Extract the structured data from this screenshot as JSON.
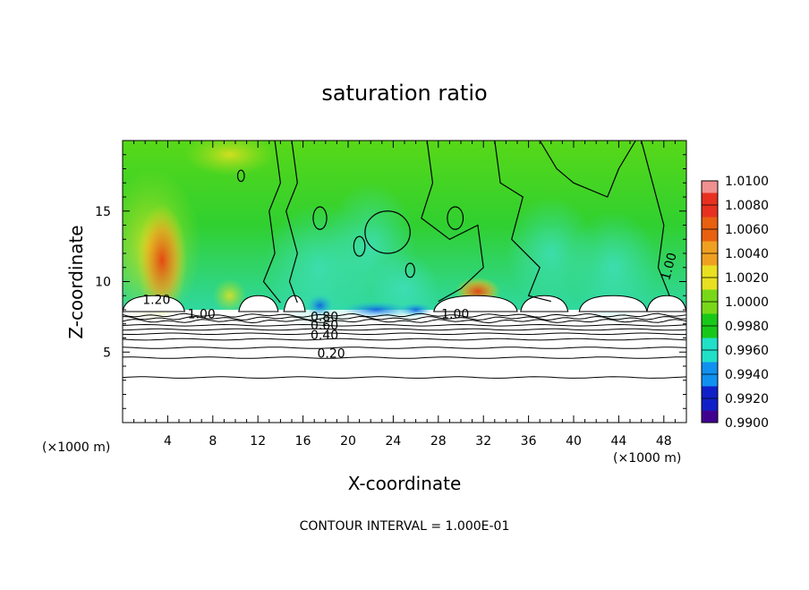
{
  "chart_data": {
    "type": "heatmap",
    "title": "saturation ratio",
    "xlabel": "X-coordinate",
    "ylabel": "Z-coordinate",
    "x_unit": "(×1000 m)",
    "xlim": [
      0,
      50
    ],
    "ylim": [
      0,
      20
    ],
    "x_ticks": [
      4,
      8,
      12,
      16,
      20,
      24,
      28,
      32,
      36,
      40,
      44,
      48
    ],
    "y_ticks": [
      5,
      10,
      15
    ],
    "colorbar": {
      "ticks": [
        "1.0100",
        "1.0080",
        "1.0060",
        "1.0040",
        "1.0020",
        "1.0000",
        "0.9980",
        "0.9960",
        "0.9940",
        "0.9920",
        "0.9900"
      ],
      "colors": [
        "#f09090",
        "#e83020",
        "#e86010",
        "#f0a020",
        "#e8e020",
        "#78d818",
        "#18c818",
        "#20e0c8",
        "#1090f0",
        "#1020c8",
        "#400090"
      ],
      "min": 0.99,
      "max": 1.01
    },
    "contour_levels": [
      0.1,
      0.2,
      0.3,
      0.4,
      0.5,
      0.6,
      0.7,
      0.8,
      0.9,
      1.0,
      1.1,
      1.2
    ],
    "contour_labels": [
      {
        "text": "0.20",
        "x": 18.5,
        "z": 4.6
      },
      {
        "text": "0.40",
        "x": 17.9,
        "z": 5.9
      },
      {
        "text": "0.60",
        "x": 17.9,
        "z": 6.6
      },
      {
        "text": "0.80",
        "x": 17.9,
        "z": 7.2
      },
      {
        "text": "1.00",
        "x": 7.0,
        "z": 7.4
      },
      {
        "text": "1.20",
        "x": 3.0,
        "z": 8.4
      },
      {
        "text": "1.00",
        "x": 29.5,
        "z": 7.4
      },
      {
        "text": "1.00",
        "x": 48.8,
        "z": 11.0
      }
    ],
    "annotation": "CONTOUR INTERVAL = 1.000E-01"
  }
}
